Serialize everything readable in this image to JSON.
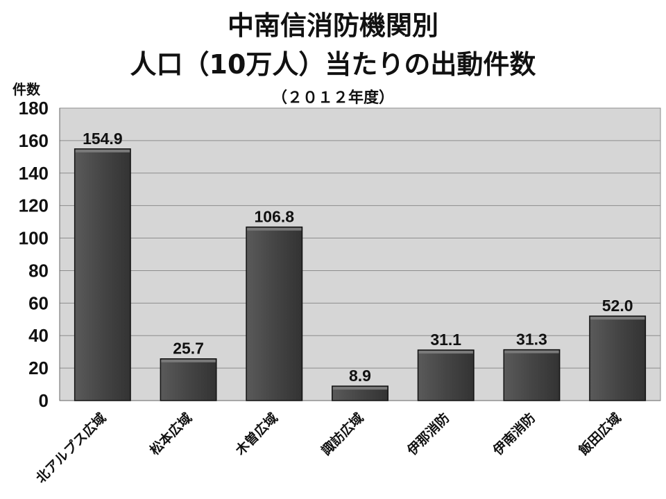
{
  "chart_data": {
    "type": "bar",
    "title": [
      "中南信消防機関別",
      "人口（10万人）当たりの出動件数"
    ],
    "subtitle": "（２０１２年度）",
    "ylabel": "件数",
    "xlabel": "",
    "categories": [
      "北アルプス広域",
      "松本広域",
      "木曽広域",
      "諏訪広域",
      "伊那消防",
      "伊南消防",
      "飯田広域"
    ],
    "values": [
      154.9,
      25.7,
      106.8,
      8.9,
      31.1,
      31.3,
      52.0
    ],
    "value_labels": [
      "154.9",
      "25.7",
      "106.8",
      "8.9",
      "31.1",
      "31.3",
      "52.0"
    ],
    "ylim": [
      0,
      180
    ],
    "yticks": [
      0,
      20,
      40,
      60,
      80,
      100,
      120,
      140,
      160,
      180
    ],
    "grid": true,
    "legend": "none",
    "colors": {
      "bar_fill": "#444444",
      "bar_edge": "#111111",
      "plot_background": "#d6d6d6",
      "grid": "#8c8c8c"
    }
  }
}
